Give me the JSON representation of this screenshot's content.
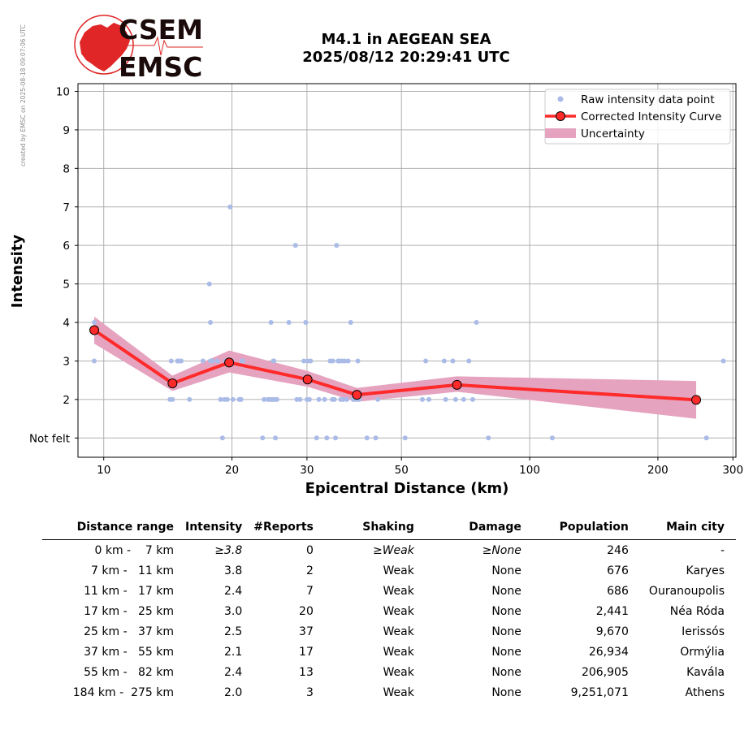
{
  "side_note": "created by EMSC on 2025-08-18 09:07:06 UTC",
  "logo": {
    "line1": "CSEM",
    "line2": "EMSC"
  },
  "title": {
    "line1": "M4.1 in AEGEAN SEA",
    "line2": "2025/08/12 20:29:41 UTC"
  },
  "colors": {
    "raw": "#aabbe8",
    "curve": "#ff2a2a",
    "band": "#e6a3c0",
    "grid": "#b0b0b0",
    "logo_red": "#e02626",
    "logo_dark": "#1a0a0a"
  },
  "chart_data": {
    "type": "line",
    "xlabel": "Epicentral Distance (km)",
    "ylabel": "Intensity",
    "xscale": "log",
    "xlim": [
      8.7,
      305
    ],
    "ylim": [
      0.5,
      10.2
    ],
    "xticks": [
      10,
      20,
      30,
      50,
      100,
      200,
      300
    ],
    "yticks": [
      {
        "v": 1,
        "label": "Not felt"
      },
      {
        "v": 2,
        "label": "2"
      },
      {
        "v": 3,
        "label": "3"
      },
      {
        "v": 4,
        "label": "4"
      },
      {
        "v": 5,
        "label": "5"
      },
      {
        "v": 6,
        "label": "6"
      },
      {
        "v": 7,
        "label": "7"
      },
      {
        "v": 8,
        "label": "8"
      },
      {
        "v": 9,
        "label": "9"
      },
      {
        "v": 10,
        "label": "10"
      }
    ],
    "grid": true,
    "legend": {
      "placement": "top-right",
      "entries": [
        "Raw intensity data point",
        "Corrected Intensity Curve",
        "Uncertainty"
      ]
    },
    "curve": {
      "name": "Corrected Intensity Curve",
      "x": [
        9.5,
        14.5,
        19.7,
        30.1,
        39.3,
        67.5,
        246
      ],
      "y": [
        3.8,
        2.42,
        2.96,
        2.52,
        2.12,
        2.38,
        1.99
      ]
    },
    "uncertainty": {
      "name": "Uncertainty",
      "x": [
        9.5,
        14.5,
        19.7,
        30.1,
        39.3,
        67.5,
        246
      ],
      "lower": [
        3.45,
        2.22,
        2.7,
        2.33,
        1.94,
        2.2,
        1.5
      ],
      "upper": [
        4.15,
        2.62,
        3.27,
        2.74,
        2.3,
        2.6,
        2.48
      ]
    },
    "raw_points": {
      "name": "Raw intensity data point",
      "x": [
        9.5,
        9.5,
        14.3,
        14.4,
        14.5,
        14.9,
        15.0,
        15.2,
        15.9,
        17.1,
        17.7,
        17.8,
        17.8,
        18.0,
        18.5,
        18.8,
        19.0,
        19.2,
        19.3,
        19.5,
        19.8,
        20.0,
        20.1,
        20.8,
        21.0,
        21.1,
        21.2,
        23.6,
        23.8,
        24.3,
        24.6,
        24.7,
        24.8,
        24.9,
        25.0,
        25.1,
        25.2,
        25.3,
        25.5,
        27.2,
        28.2,
        28.4,
        28.9,
        29.5,
        29.8,
        30.0,
        30.1,
        30.4,
        30.6,
        31.6,
        32.0,
        33.0,
        33.4,
        34.0,
        34.4,
        34.5,
        34.8,
        35.0,
        35.2,
        35.5,
        35.8,
        36.0,
        36.3,
        36.5,
        36.8,
        37.2,
        37.5,
        38.0,
        38.5,
        39.0,
        39.5,
        39.8,
        41.5,
        43.5,
        44.0,
        51.0,
        56.0,
        57.0,
        58.0,
        63.0,
        63.5,
        66.0,
        67.0,
        70.0,
        72.0,
        73.5,
        75.0,
        80.0,
        113.0,
        260.0,
        285.0
      ],
      "y": [
        4,
        3,
        2,
        3,
        2,
        3,
        3,
        3,
        2,
        3,
        5,
        4,
        3,
        3,
        3,
        2,
        1,
        2,
        3,
        2,
        7,
        3,
        2,
        2,
        2,
        3,
        3,
        1,
        2,
        2,
        2,
        4,
        2,
        2,
        3,
        3,
        2,
        1,
        2,
        4,
        6,
        2,
        2,
        3,
        4,
        2,
        3,
        2,
        3,
        1,
        2,
        2,
        1,
        3,
        2,
        3,
        2,
        1,
        6,
        3,
        3,
        2,
        3,
        2,
        3,
        2,
        3,
        4,
        2,
        2,
        3,
        2,
        1,
        1,
        2,
        1,
        2,
        3,
        2,
        3,
        2,
        3,
        2,
        2,
        3,
        2,
        4,
        1,
        1,
        1,
        3
      ]
    }
  },
  "table": {
    "headers": [
      "Distance range",
      "Intensity",
      "#Reports",
      "Shaking",
      "Damage",
      "Population",
      "Main city"
    ],
    "rows": [
      [
        "0 km -    7 km",
        "≥3.8",
        "0",
        "≥Weak",
        "≥None",
        "246",
        "-"
      ],
      [
        "7 km -   11 km",
        "3.8",
        "2",
        "Weak",
        "None",
        "676",
        "Karyes"
      ],
      [
        "11 km -   17 km",
        "2.4",
        "7",
        "Weak",
        "None",
        "686",
        "Ouranoupolis"
      ],
      [
        "17 km -   25 km",
        "3.0",
        "20",
        "Weak",
        "None",
        "2,441",
        "Néa Róda"
      ],
      [
        "25 km -   37 km",
        "2.5",
        "37",
        "Weak",
        "None",
        "9,670",
        "Ierissós"
      ],
      [
        "37 km -   55 km",
        "2.1",
        "17",
        "Weak",
        "None",
        "26,934",
        "Ormýlia"
      ],
      [
        "55 km -   82 km",
        "2.4",
        "13",
        "Weak",
        "None",
        "206,905",
        "Kavála"
      ],
      [
        "184 km -  275 km",
        "2.0",
        "3",
        "Weak",
        "None",
        "9,251,071",
        "Athens"
      ]
    ]
  }
}
